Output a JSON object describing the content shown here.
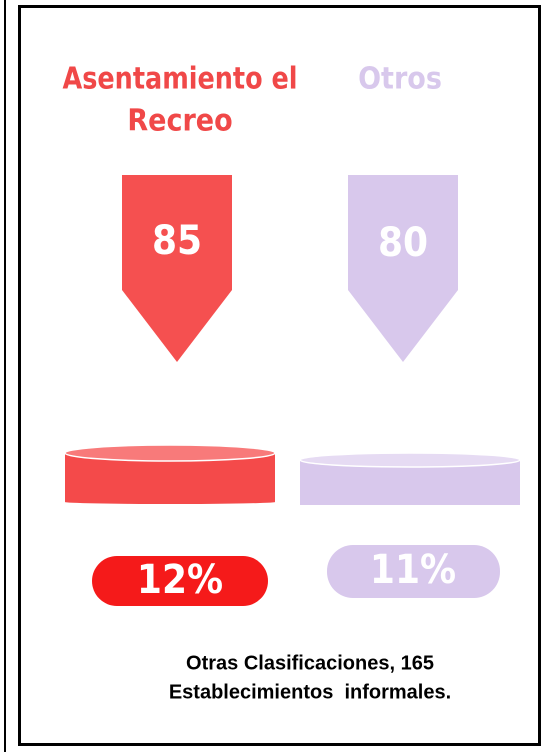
{
  "items": [
    {
      "label_lines": [
        "Asentamiento el",
        "Recreo"
      ],
      "count": "85",
      "percent": "12%"
    },
    {
      "label_lines": [
        "Otros"
      ],
      "count": "80",
      "percent": "11%"
    }
  ],
  "footer_lines": [
    "Otras Clasificaciones, 165",
    "Establecimientos  informales."
  ]
}
